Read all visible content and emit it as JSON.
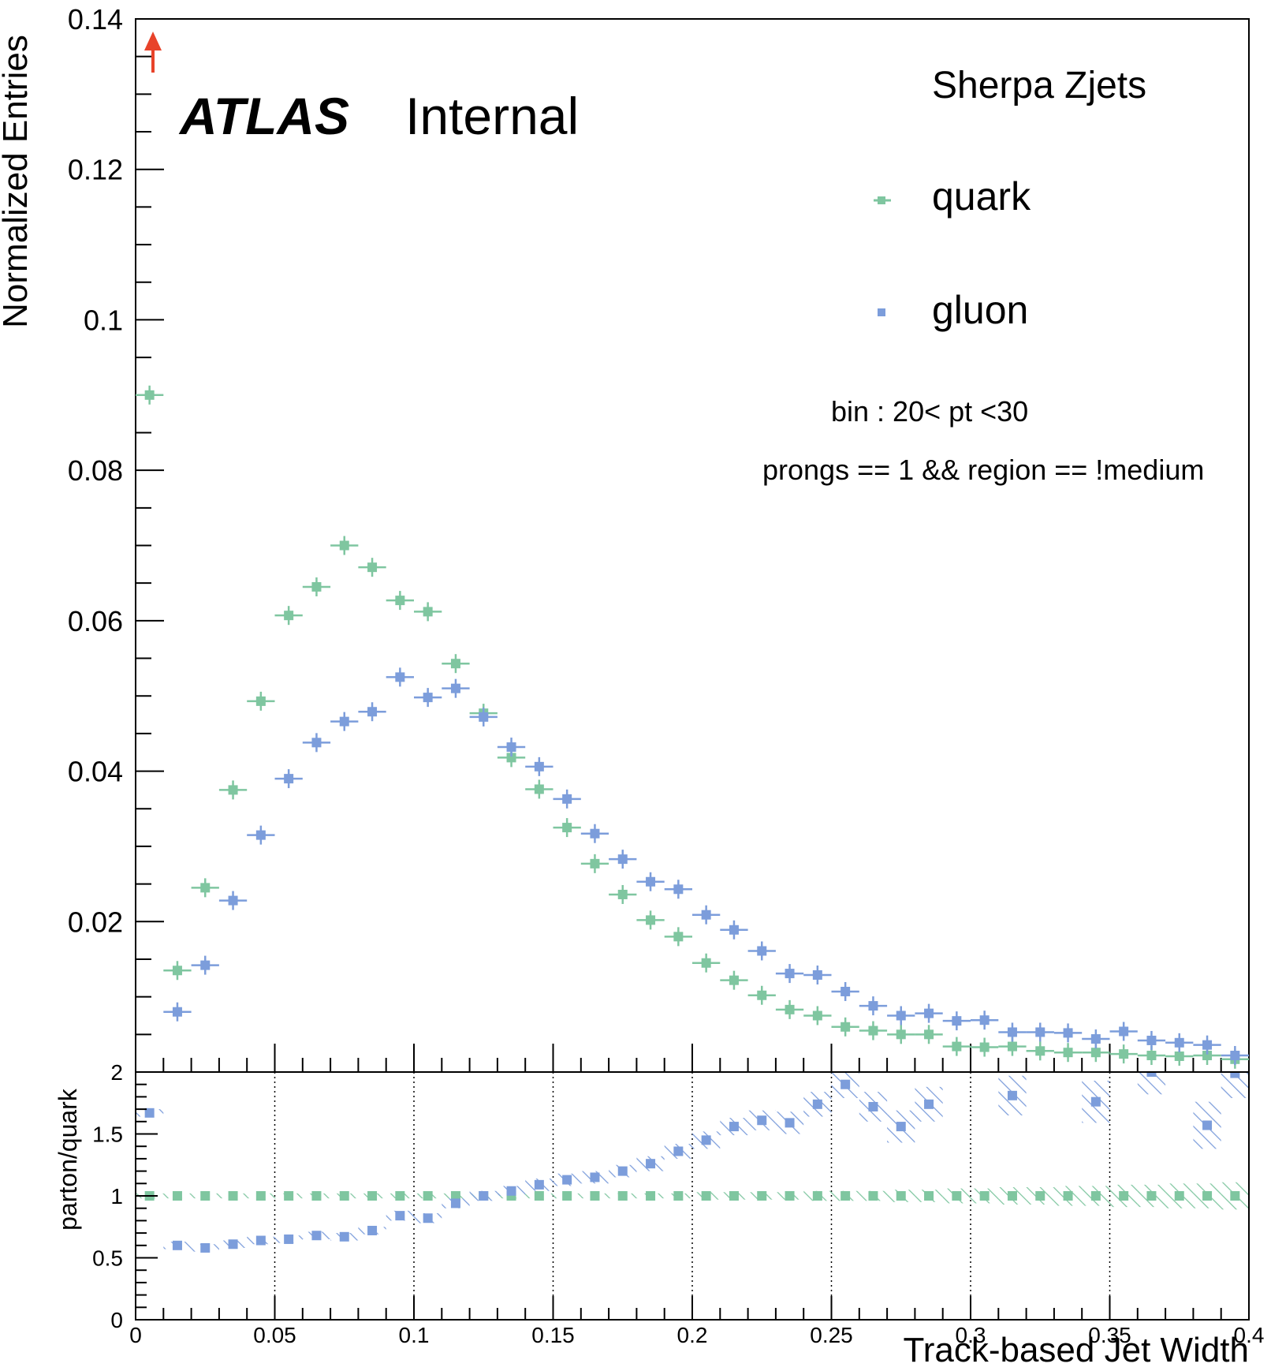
{
  "chart_data": [
    {
      "type": "scatter",
      "panel": "main",
      "ylabel": "Normalized Entries",
      "xlim": [
        0,
        0.4
      ],
      "ylim": [
        0,
        0.14
      ],
      "yticks": [
        "0.02",
        "0.04",
        "0.06",
        "0.08",
        "0.1",
        "0.12",
        "0.14"
      ],
      "bin_width": 0.01,
      "x": [
        0.005,
        0.015,
        0.025,
        0.035,
        0.045,
        0.055,
        0.065,
        0.075,
        0.085,
        0.095,
        0.105,
        0.115,
        0.125,
        0.135,
        0.145,
        0.155,
        0.165,
        0.175,
        0.185,
        0.195,
        0.205,
        0.215,
        0.225,
        0.235,
        0.245,
        0.255,
        0.265,
        0.275,
        0.285,
        0.295,
        0.305,
        0.315,
        0.325,
        0.335,
        0.345,
        0.355,
        0.365,
        0.375,
        0.385,
        0.395
      ],
      "series": [
        {
          "name": "quark",
          "color": "#7fc6a0",
          "values": [
            0.09,
            0.0135,
            0.0245,
            0.0375,
            0.0493,
            0.0607,
            0.0645,
            0.07,
            0.0671,
            0.0627,
            0.0612,
            0.0543,
            0.0477,
            0.0418,
            0.0376,
            0.0325,
            0.0277,
            0.0236,
            0.0202,
            0.018,
            0.0145,
            0.0122,
            0.0102,
            0.0083,
            0.0075,
            0.006,
            0.0055,
            0.005,
            0.005,
            0.0034,
            0.0033,
            0.0034,
            0.0028,
            0.0026,
            0.0026,
            0.0024,
            0.0022,
            0.0021,
            0.0022,
            0.0017
          ]
        },
        {
          "name": "gluon",
          "color": "#7c9ddb",
          "values": [
            0.15,
            0.008,
            0.0142,
            0.0228,
            0.0315,
            0.039,
            0.0438,
            0.0466,
            0.0479,
            0.0525,
            0.0498,
            0.051,
            0.0472,
            0.0432,
            0.0406,
            0.0363,
            0.0317,
            0.0283,
            0.0253,
            0.0243,
            0.0209,
            0.0189,
            0.0161,
            0.0131,
            0.0129,
            0.0107,
            0.0088,
            0.0075,
            0.0078,
            0.0068,
            0.0069,
            0.0053,
            0.0053,
            0.0052,
            0.0044,
            0.0054,
            0.0042,
            0.0039,
            0.0036,
            0.0022
          ]
        }
      ],
      "overflow_marker": {
        "x": 0.005,
        "color": "#e8432a"
      }
    },
    {
      "type": "scatter",
      "panel": "ratio",
      "xlabel": "Track-based Jet Width",
      "ylabel": "parton/quark",
      "xlim": [
        0,
        0.4
      ],
      "ylim": [
        0,
        2
      ],
      "xticks": [
        "0",
        "0.05",
        "0.1",
        "0.15",
        "0.2",
        "0.25",
        "0.3",
        "0.35",
        "0.4"
      ],
      "yticks": [
        "0",
        "0.5",
        "1",
        "1.5",
        "2"
      ],
      "grid_x": true,
      "x": [
        0.005,
        0.015,
        0.025,
        0.035,
        0.045,
        0.055,
        0.065,
        0.075,
        0.085,
        0.095,
        0.105,
        0.115,
        0.125,
        0.135,
        0.145,
        0.155,
        0.165,
        0.175,
        0.185,
        0.195,
        0.205,
        0.215,
        0.225,
        0.235,
        0.245,
        0.255,
        0.265,
        0.275,
        0.285,
        0.295,
        0.305,
        0.315,
        0.325,
        0.335,
        0.345,
        0.355,
        0.365,
        0.375,
        0.385,
        0.395
      ],
      "series": [
        {
          "name": "quark",
          "color": "#7fc6a0",
          "values": [
            1,
            1,
            1,
            1,
            1,
            1,
            1,
            1,
            1,
            1,
            1,
            1,
            1,
            1,
            1,
            1,
            1,
            1,
            1,
            1,
            1,
            1,
            1,
            1,
            1,
            1,
            1,
            1,
            1,
            1,
            1,
            1,
            1,
            1,
            1,
            1,
            1,
            1,
            1,
            1
          ],
          "band_halfwidth": [
            0.02,
            0.02,
            0.02,
            0.02,
            0.02,
            0.02,
            0.02,
            0.02,
            0.02,
            0.02,
            0.02,
            0.02,
            0.02,
            0.02,
            0.02,
            0.02,
            0.02,
            0.02,
            0.02,
            0.02,
            0.03,
            0.03,
            0.03,
            0.03,
            0.04,
            0.04,
            0.04,
            0.05,
            0.05,
            0.06,
            0.06,
            0.07,
            0.07,
            0.08,
            0.08,
            0.09,
            0.09,
            0.1,
            0.1,
            0.11
          ]
        },
        {
          "name": "gluon",
          "color": "#7c9ddb",
          "values": [
            1.67,
            0.6,
            0.58,
            0.61,
            0.64,
            0.65,
            0.68,
            0.67,
            0.72,
            0.84,
            0.82,
            0.94,
            1.0,
            1.04,
            1.09,
            1.13,
            1.15,
            1.2,
            1.26,
            1.36,
            1.45,
            1.56,
            1.61,
            1.59,
            1.74,
            1.9,
            1.72,
            1.56,
            1.74,
            null,
            null,
            1.81,
            null,
            null,
            1.76,
            null,
            2.0,
            null,
            1.57,
            1.99
          ],
          "band_halfwidth": [
            0.03,
            0.03,
            0.03,
            0.03,
            0.03,
            0.03,
            0.03,
            0.03,
            0.03,
            0.04,
            0.04,
            0.04,
            0.04,
            0.04,
            0.05,
            0.05,
            0.05,
            0.05,
            0.06,
            0.06,
            0.07,
            0.07,
            0.08,
            0.09,
            0.1,
            0.11,
            0.12,
            0.13,
            0.14,
            0.15,
            0.15,
            0.16,
            0.16,
            0.17,
            0.17,
            0.18,
            0.18,
            0.19,
            0.19,
            0.2
          ]
        }
      ]
    }
  ],
  "annotations": {
    "atlas": "ATLAS",
    "internal": "Internal",
    "generator": "Sherpa Zjets",
    "bin_text": "bin : 20< pt <30",
    "selection_text": "prongs == 1 && region == !medium"
  },
  "legend": {
    "placement": "top-right",
    "items": [
      {
        "label": "quark",
        "color": "#7fc6a0"
      },
      {
        "label": "gluon",
        "color": "#7c9ddb"
      }
    ]
  },
  "ratio_top_tick_clipped": "2"
}
